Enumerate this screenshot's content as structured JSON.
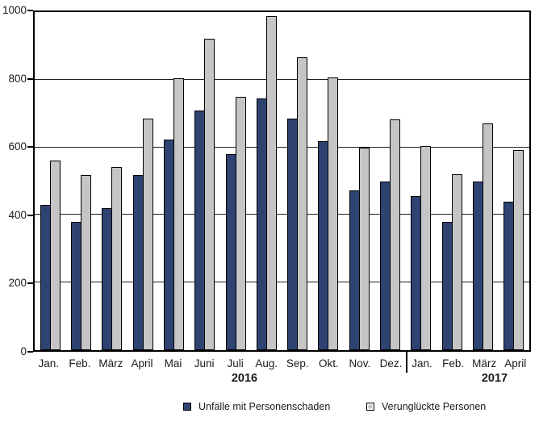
{
  "chart_data": {
    "type": "bar",
    "categories": [
      "Jan.",
      "Feb.",
      "März",
      "April",
      "Mai",
      "Juni",
      "Juli",
      "Aug.",
      "Sep.",
      "Okt.",
      "Nov.",
      "Dez.",
      "Jan.",
      "Feb.",
      "März",
      "April"
    ],
    "series": [
      {
        "name": "Unfälle mit Personenschaden",
        "color": "#2e4371",
        "values": [
          430,
          380,
          419,
          518,
          624,
          708,
          580,
          744,
          685,
          618,
          472,
          500,
          457,
          379,
          500,
          440
        ]
      },
      {
        "name": "Verunglückte Personen",
        "color": "#c5c5c5",
        "values": [
          562,
          517,
          541,
          684,
          804,
          921,
          749,
          989,
          866,
          806,
          599,
          682,
          605,
          520,
          670,
          591
        ]
      }
    ],
    "year_groups": [
      {
        "label": "2016",
        "count": 12
      },
      {
        "label": "2017",
        "count": 4
      }
    ],
    "ylim": [
      0,
      1000
    ],
    "yticks": [
      0,
      200,
      400,
      600,
      800,
      1000
    ],
    "grid": true,
    "legend_position": "bottom"
  },
  "colors": {
    "bar_fill_series1": "#2e4371",
    "bar_fill_series2": "#c5c5c5",
    "bar_border": "#000000",
    "axis": "#000000",
    "gridline": "#1f1f1f",
    "background": "#ffffff",
    "text": "#1a1a1a"
  }
}
